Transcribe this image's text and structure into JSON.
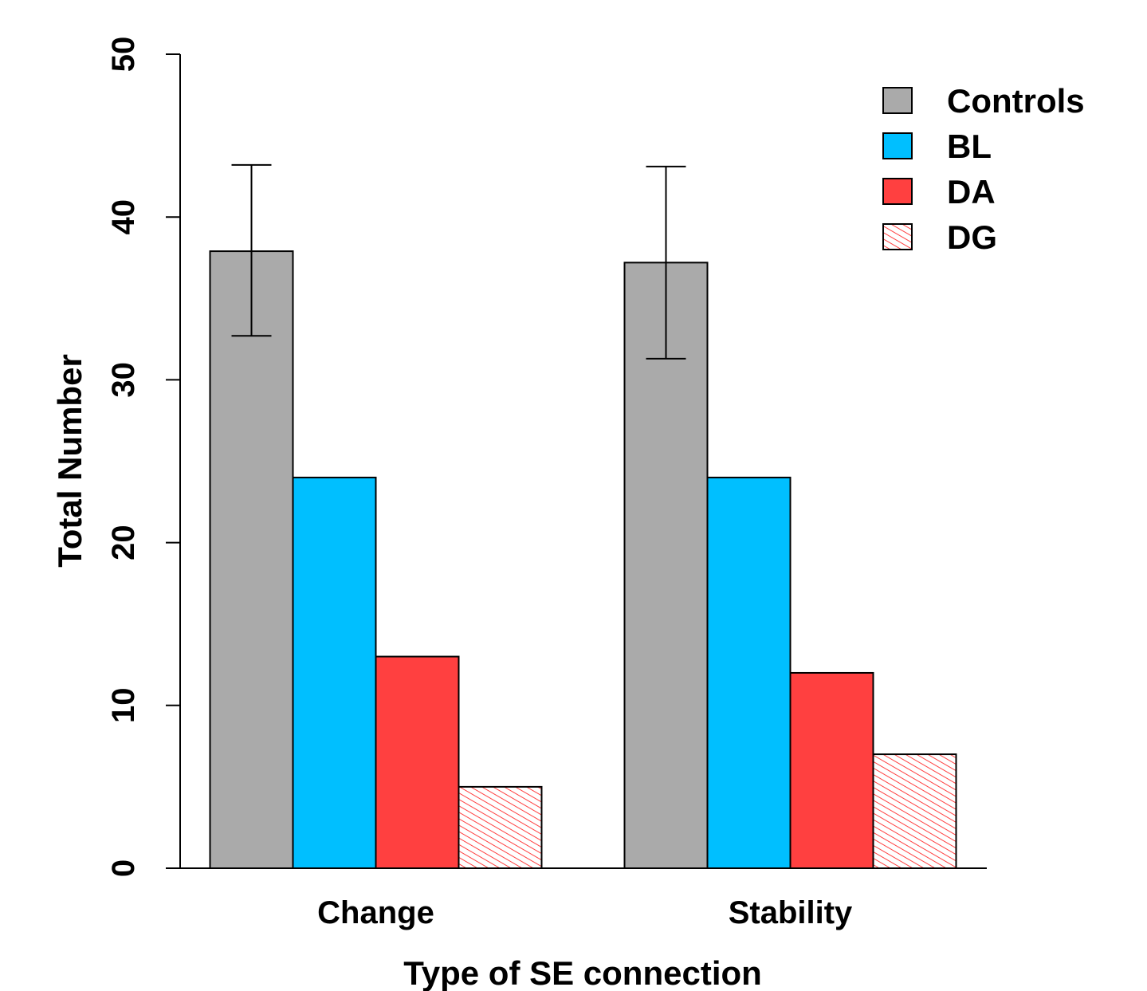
{
  "chart_data": {
    "type": "bar",
    "title": "",
    "xlabel": "Type of SE connection",
    "ylabel": "Total Number",
    "ylim": [
      0,
      50
    ],
    "yticks": [
      0,
      10,
      20,
      30,
      40,
      50
    ],
    "categories": [
      "Change",
      "Stability"
    ],
    "series": [
      {
        "name": "Controls",
        "values": [
          37.9,
          37.2
        ],
        "color": "#aaaaaa",
        "fill": "solid",
        "error_bars": [
          [
            32.7,
            43.2
          ],
          [
            31.3,
            43.1
          ]
        ]
      },
      {
        "name": "BL",
        "values": [
          24,
          24
        ],
        "color": "#00bfff",
        "fill": "solid"
      },
      {
        "name": "DA",
        "values": [
          13,
          12
        ],
        "color": "#ff4040",
        "fill": "solid"
      },
      {
        "name": "DG",
        "values": [
          5,
          7
        ],
        "color": "#ff4040",
        "fill": "hatched"
      }
    ],
    "legend_position": "top-right",
    "grid": false
  }
}
